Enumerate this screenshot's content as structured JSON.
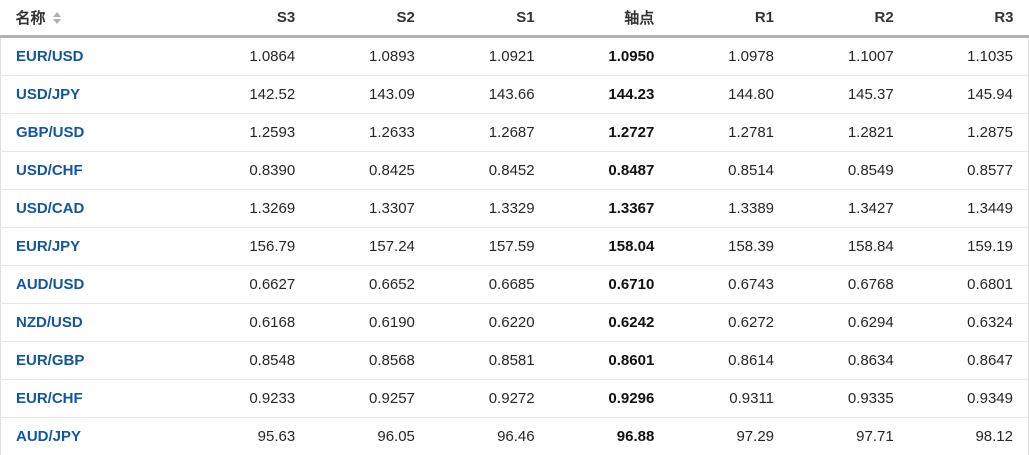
{
  "colors": {
    "link_blue": "#1256a0",
    "header_text": "#333333",
    "value_text": "#262626",
    "header_divider": "#b3b3b3",
    "row_border": "#e6e6e6",
    "background": "#ffffff"
  },
  "icons": {
    "sort_icon": "up-down-sort-arrows"
  },
  "table": {
    "columns": [
      {
        "key": "name",
        "label": "名称",
        "sortable": true,
        "align": "left"
      },
      {
        "key": "s3",
        "label": "S3"
      },
      {
        "key": "s2",
        "label": "S2"
      },
      {
        "key": "s1",
        "label": "S1"
      },
      {
        "key": "pivot",
        "label": "轴点",
        "emphasis": true
      },
      {
        "key": "r1",
        "label": "R1"
      },
      {
        "key": "r2",
        "label": "R2"
      },
      {
        "key": "r3",
        "label": "R3"
      }
    ],
    "rows": [
      [
        "EUR/USD",
        "1.0864",
        "1.0893",
        "1.0921",
        "1.0950",
        "1.0978",
        "1.1007",
        "1.1035"
      ],
      [
        "USD/JPY",
        "142.52",
        "143.09",
        "143.66",
        "144.23",
        "144.80",
        "145.37",
        "145.94"
      ],
      [
        "GBP/USD",
        "1.2593",
        "1.2633",
        "1.2687",
        "1.2727",
        "1.2781",
        "1.2821",
        "1.2875"
      ],
      [
        "USD/CHF",
        "0.8390",
        "0.8425",
        "0.8452",
        "0.8487",
        "0.8514",
        "0.8549",
        "0.8577"
      ],
      [
        "USD/CAD",
        "1.3269",
        "1.3307",
        "1.3329",
        "1.3367",
        "1.3389",
        "1.3427",
        "1.3449"
      ],
      [
        "EUR/JPY",
        "156.79",
        "157.24",
        "157.59",
        "158.04",
        "158.39",
        "158.84",
        "159.19"
      ],
      [
        "AUD/USD",
        "0.6627",
        "0.6652",
        "0.6685",
        "0.6710",
        "0.6743",
        "0.6768",
        "0.6801"
      ],
      [
        "NZD/USD",
        "0.6168",
        "0.6190",
        "0.6220",
        "0.6242",
        "0.6272",
        "0.6294",
        "0.6324"
      ],
      [
        "EUR/GBP",
        "0.8548",
        "0.8568",
        "0.8581",
        "0.8601",
        "0.8614",
        "0.8634",
        "0.8647"
      ],
      [
        "EUR/CHF",
        "0.9233",
        "0.9257",
        "0.9272",
        "0.9296",
        "0.9311",
        "0.9335",
        "0.9349"
      ],
      [
        "AUD/JPY",
        "95.63",
        "96.05",
        "96.46",
        "96.88",
        "97.29",
        "97.71",
        "98.12"
      ]
    ]
  }
}
